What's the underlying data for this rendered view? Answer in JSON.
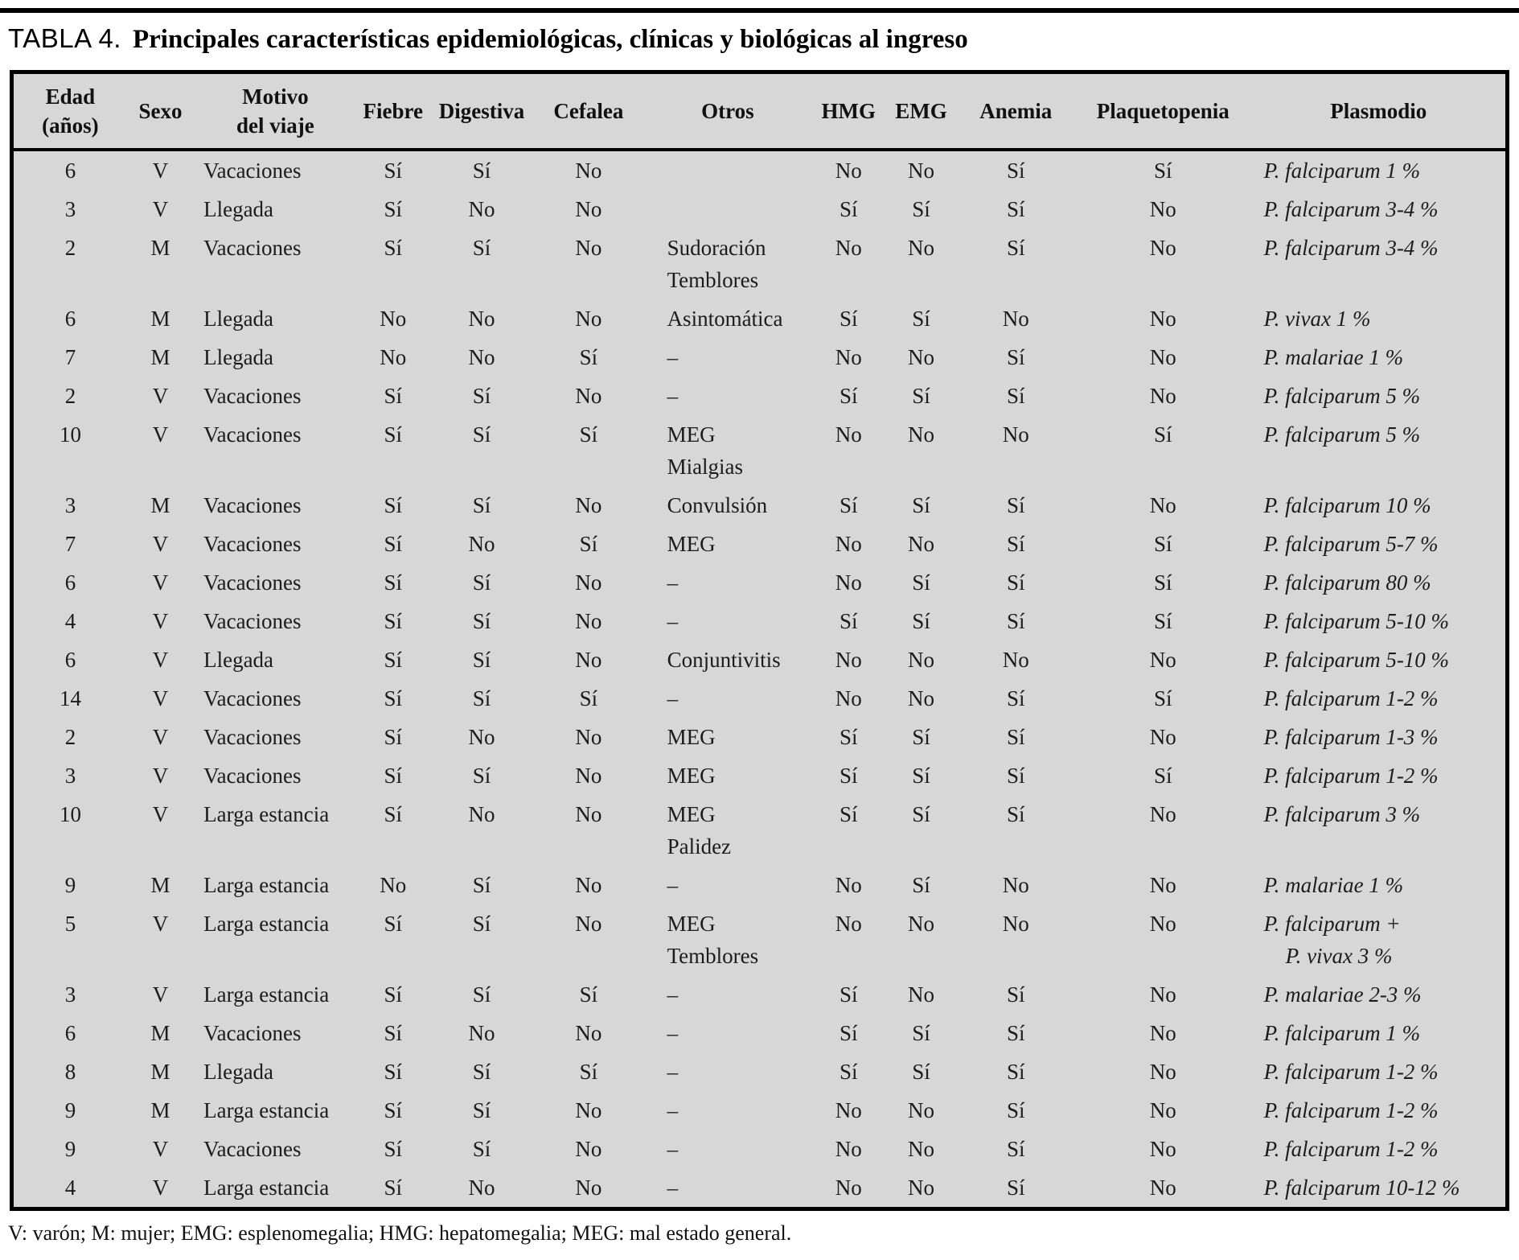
{
  "title": {
    "label": "TABLA 4.",
    "text": "Principales características epidemiológicas, clínicas y biológicas al ingreso"
  },
  "colors": {
    "table_bg": "#d7d7d7",
    "border": "#000000",
    "text": "#1a1a1a"
  },
  "table": {
    "columns": [
      {
        "key": "edad",
        "label": "Edad\n(años)"
      },
      {
        "key": "sexo",
        "label": "Sexo"
      },
      {
        "key": "motivo",
        "label": "Motivo\ndel viaje"
      },
      {
        "key": "fiebre",
        "label": "Fiebre"
      },
      {
        "key": "digestiva",
        "label": "Digestiva"
      },
      {
        "key": "cefalea",
        "label": "Cefalea"
      },
      {
        "key": "otros",
        "label": "Otros"
      },
      {
        "key": "hmg",
        "label": "HMG"
      },
      {
        "key": "emg",
        "label": "EMG"
      },
      {
        "key": "anemia",
        "label": "Anemia"
      },
      {
        "key": "plaquetopenia",
        "label": "Plaquetopenia"
      },
      {
        "key": "plasmodio",
        "label": "Plasmodio"
      }
    ],
    "rows": [
      [
        "6",
        "V",
        "Vacaciones",
        "Sí",
        "Sí",
        "No",
        "",
        "No",
        "No",
        "Sí",
        "Sí",
        "P. falciparum 1 %"
      ],
      [
        "3",
        "V",
        "Llegada",
        "Sí",
        "No",
        "No",
        "",
        "Sí",
        "Sí",
        "Sí",
        "No",
        "P. falciparum 3-4 %"
      ],
      [
        "2",
        "M",
        "Vacaciones",
        "Sí",
        "Sí",
        "No",
        "Sudoración\nTemblores",
        "No",
        "No",
        "Sí",
        "No",
        "P. falciparum 3-4 %"
      ],
      [
        "6",
        "M",
        "Llegada",
        "No",
        "No",
        "No",
        "Asintomática",
        "Sí",
        "Sí",
        "No",
        "No",
        "P. vivax 1 %"
      ],
      [
        "7",
        "M",
        "Llegada",
        "No",
        "No",
        "Sí",
        "–",
        "No",
        "No",
        "Sí",
        "No",
        "P. malariae 1 %"
      ],
      [
        "2",
        "V",
        "Vacaciones",
        "Sí",
        "Sí",
        "No",
        "–",
        "Sí",
        "Sí",
        "Sí",
        "No",
        "P. falciparum 5 %"
      ],
      [
        "10",
        "V",
        "Vacaciones",
        "Sí",
        "Sí",
        "Sí",
        "MEG\nMialgias",
        "No",
        "No",
        "No",
        "Sí",
        "P. falciparum 5 %"
      ],
      [
        "3",
        "M",
        "Vacaciones",
        "Sí",
        "Sí",
        "No",
        "Convulsión",
        "Sí",
        "Sí",
        "Sí",
        "No",
        "P. falciparum 10 %"
      ],
      [
        "7",
        "V",
        "Vacaciones",
        "Sí",
        "No",
        "Sí",
        "MEG",
        "No",
        "No",
        "Sí",
        "Sí",
        "P. falciparum 5-7 %"
      ],
      [
        "6",
        "V",
        "Vacaciones",
        "Sí",
        "Sí",
        "No",
        "–",
        "No",
        "Sí",
        "Sí",
        "Sí",
        "P. falciparum 80 %"
      ],
      [
        "4",
        "V",
        "Vacaciones",
        "Sí",
        "Sí",
        "No",
        "–",
        "Sí",
        "Sí",
        "Sí",
        "Sí",
        "P. falciparum 5-10 %"
      ],
      [
        "6",
        "V",
        "Llegada",
        "Sí",
        "Sí",
        "No",
        "Conjuntivitis",
        "No",
        "No",
        "No",
        "No",
        "P. falciparum 5-10 %"
      ],
      [
        "14",
        "V",
        "Vacaciones",
        "Sí",
        "Sí",
        "Sí",
        "–",
        "No",
        "No",
        "Sí",
        "Sí",
        "P. falciparum 1-2 %"
      ],
      [
        "2",
        "V",
        "Vacaciones",
        "Sí",
        "No",
        "No",
        "MEG",
        "Sí",
        "Sí",
        "Sí",
        "No",
        "P. falciparum 1-3 %"
      ],
      [
        "3",
        "V",
        "Vacaciones",
        "Sí",
        "Sí",
        "No",
        "MEG",
        "Sí",
        "Sí",
        "Sí",
        "Sí",
        "P. falciparum 1-2 %"
      ],
      [
        "10",
        "V",
        "Larga estancia",
        "Sí",
        "No",
        "No",
        "MEG\nPalidez",
        "Sí",
        "Sí",
        "Sí",
        "No",
        "P. falciparum 3 %"
      ],
      [
        "9",
        "M",
        "Larga estancia",
        "No",
        "Sí",
        "No",
        "–",
        "No",
        "Sí",
        "No",
        "No",
        "P. malariae 1 %"
      ],
      [
        "5",
        "V",
        "Larga estancia",
        "Sí",
        "Sí",
        "No",
        "MEG\nTemblores",
        "No",
        "No",
        "No",
        "No",
        "P. falciparum +\n    P. vivax 3 %"
      ],
      [
        "3",
        "V",
        "Larga estancia",
        "Sí",
        "Sí",
        "Sí",
        "–",
        "Sí",
        "No",
        "Sí",
        "No",
        "P. malariae 2-3 %"
      ],
      [
        "6",
        "M",
        "Vacaciones",
        "Sí",
        "No",
        "No",
        "–",
        "Sí",
        "Sí",
        "Sí",
        "No",
        "P. falciparum 1 %"
      ],
      [
        "8",
        "M",
        "Llegada",
        "Sí",
        "Sí",
        "Sí",
        "–",
        "Sí",
        "Sí",
        "Sí",
        "No",
        "P. falciparum 1-2 %"
      ],
      [
        "9",
        "M",
        "Larga estancia",
        "Sí",
        "Sí",
        "No",
        "–",
        "No",
        "No",
        "Sí",
        "No",
        "P. falciparum 1-2 %"
      ],
      [
        "9",
        "V",
        "Vacaciones",
        "Sí",
        "Sí",
        "No",
        "–",
        "No",
        "No",
        "Sí",
        "No",
        "P. falciparum 1-2 %"
      ],
      [
        "4",
        "V",
        "Larga estancia",
        "Sí",
        "No",
        "No",
        "–",
        "No",
        "No",
        "Sí",
        "No",
        "P. falciparum 10-12 %"
      ]
    ]
  },
  "footnote": "V: varón; M: mujer; EMG: esplenomegalia; HMG: hepatomegalia; MEG: mal estado general."
}
